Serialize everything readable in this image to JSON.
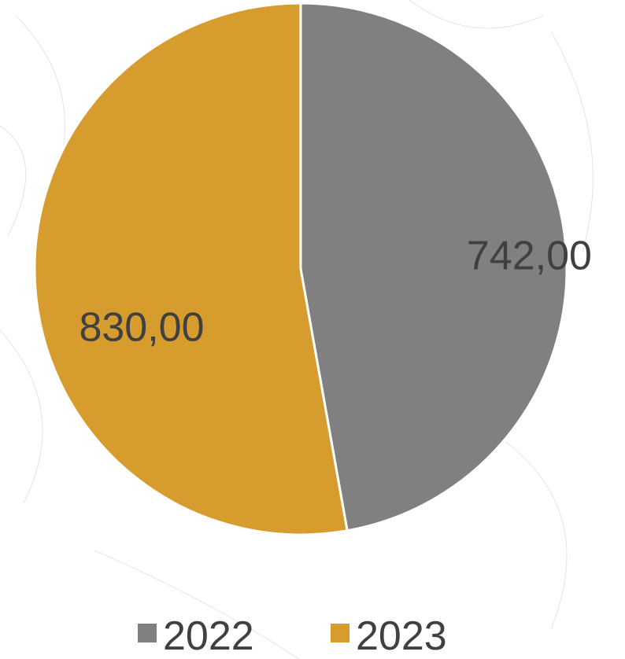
{
  "chart_data": {
    "type": "pie",
    "title": "",
    "series": [
      {
        "name": "",
        "categories": [
          "2022",
          "2023"
        ],
        "values": [
          742,
          830
        ],
        "labels": [
          "742,00",
          "830,00"
        ],
        "colors": [
          "#808080",
          "#D79C2E"
        ]
      }
    ],
    "legend": {
      "placement": "bottom",
      "entries": [
        "2022",
        "2023"
      ]
    },
    "start_angle_deg": 0,
    "direction": "clockwise",
    "slice_border_color": "#ffffff",
    "label_color": "#404040",
    "background": "decorative light-gray leaf line pattern"
  }
}
